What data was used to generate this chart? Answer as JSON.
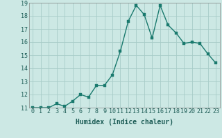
{
  "x": [
    0,
    1,
    2,
    3,
    4,
    5,
    6,
    7,
    8,
    9,
    10,
    11,
    12,
    13,
    14,
    15,
    16,
    17,
    18,
    19,
    20,
    21,
    22,
    23
  ],
  "y": [
    11.0,
    11.0,
    11.0,
    11.3,
    11.1,
    11.5,
    12.0,
    11.8,
    12.7,
    12.7,
    13.5,
    15.3,
    17.6,
    18.8,
    18.1,
    16.3,
    18.8,
    17.3,
    16.7,
    15.9,
    16.0,
    15.9,
    15.1,
    14.4
  ],
  "line_color": "#1a7a6e",
  "marker_color": "#1a7a6e",
  "bg_color": "#cce8e4",
  "grid_color": "#a8ccc8",
  "xlabel": "Humidex (Indice chaleur)",
  "ylim": [
    11,
    19
  ],
  "xlim_min": -0.5,
  "xlim_max": 23.5,
  "yticks": [
    11,
    12,
    13,
    14,
    15,
    16,
    17,
    18,
    19
  ],
  "xticks": [
    0,
    1,
    2,
    3,
    4,
    5,
    6,
    7,
    8,
    9,
    10,
    11,
    12,
    13,
    14,
    15,
    16,
    17,
    18,
    19,
    20,
    21,
    22,
    23
  ],
  "tick_fontsize": 6,
  "label_fontsize": 7,
  "marker_size": 2.5,
  "line_width": 1.0
}
